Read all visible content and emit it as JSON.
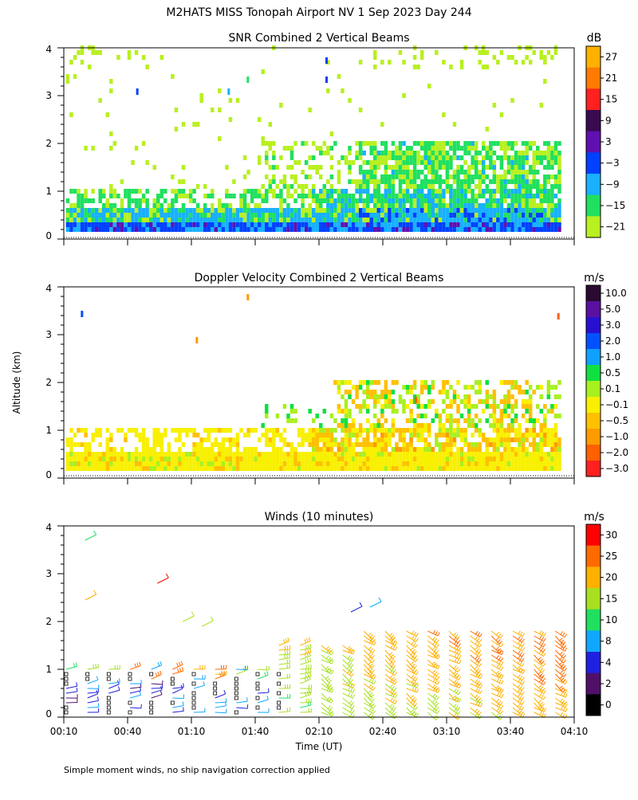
{
  "figure": {
    "title": "M2HATS MISS Tonopah Airport NV   1 Sep 2023 Day 244",
    "ylabel": "Altitude (km)",
    "xlabel": "Time (UT)",
    "footnote": "Simple moment winds, no ship navigation correction applied"
  },
  "chart_data": [
    {
      "type": "heatmap",
      "title": "SNR Combined 2 Vertical Beams",
      "ylabel": "Altitude (km)",
      "ylim": [
        0,
        4
      ],
      "yticks": [
        "0",
        "1",
        "2",
        "3",
        "4"
      ],
      "xlim_minutes": [
        10,
        250
      ],
      "x_minor_ticks_minutes": [
        40,
        70,
        100,
        130,
        160,
        190,
        220
      ],
      "colorbar": {
        "unit": "dB",
        "labels": [
          "27",
          "21",
          "15",
          "9",
          "3",
          "−3",
          "−9",
          "−15",
          "−21"
        ],
        "colors": [
          "#ffb000",
          "#ff7a00",
          "#ff2020",
          "#3a0a50",
          "#6010b0",
          "#0040ff",
          "#18b0ff",
          "#20e060",
          "#b8f020"
        ]
      },
      "description_layers": [
        {
          "alt_km": [
            0.15,
            0.35
          ],
          "level": "3"
        },
        {
          "alt_km": [
            0.35,
            0.6
          ],
          "level": "-9"
        },
        {
          "alt_km": [
            0.6,
            1.0
          ],
          "level": "-15"
        },
        {
          "alt_km": [
            1.0,
            2.0
          ],
          "level": "-15",
          "x_minutes": [
            160,
            230
          ]
        }
      ]
    },
    {
      "type": "heatmap",
      "title": "Doppler Velocity Combined 2 Vertical Beams",
      "ylabel": "Altitude (km)",
      "ylim": [
        0,
        4
      ],
      "yticks": [
        "0",
        "1",
        "2",
        "3",
        "4"
      ],
      "xlim_minutes": [
        10,
        250
      ],
      "colorbar": {
        "unit": "m/s",
        "labels": [
          "10.0",
          "5.0",
          "3.0",
          "2.0",
          "1.0",
          "0.5",
          "0.1",
          "−0.1",
          "−0.5",
          "−1.0",
          "−2.0",
          "−3.0"
        ],
        "colors": [
          "#2a0a30",
          "#5a10a0",
          "#2810d0",
          "#0050ff",
          "#10a0ff",
          "#10e040",
          "#a8f020",
          "#f8f000",
          "#ffc000",
          "#ff9a00",
          "#ff6000",
          "#ff2020"
        ]
      }
    },
    {
      "type": "wind_barbs",
      "title": "Winds (10 minutes)",
      "ylabel": "Altitude (km)",
      "ylim": [
        0,
        4
      ],
      "yticks": [
        "0",
        "1",
        "2",
        "3",
        "4"
      ],
      "xlim_minutes": [
        10,
        250
      ],
      "xticks": [
        "00:10",
        "00:40",
        "01:10",
        "01:40",
        "02:10",
        "02:40",
        "03:10",
        "03:40",
        "04:10"
      ],
      "xtick_minutes": [
        10,
        40,
        70,
        100,
        130,
        160,
        190,
        220,
        250
      ],
      "colorbar": {
        "unit": "m/s",
        "labels": [
          "30",
          "25",
          "20",
          "15",
          "10",
          "8",
          "4",
          "2",
          "0"
        ],
        "colors": [
          "#ff0000",
          "#ff6a00",
          "#ffb000",
          "#a8e020",
          "#20e060",
          "#10a8ff",
          "#2020e0",
          "#50106a",
          "#000000"
        ]
      },
      "profile_times_minutes": [
        10,
        20,
        30,
        40,
        50,
        60,
        70,
        80,
        90,
        100,
        110,
        120,
        130,
        140,
        150,
        160,
        170,
        180,
        190,
        200,
        210,
        220,
        230,
        240
      ]
    }
  ]
}
